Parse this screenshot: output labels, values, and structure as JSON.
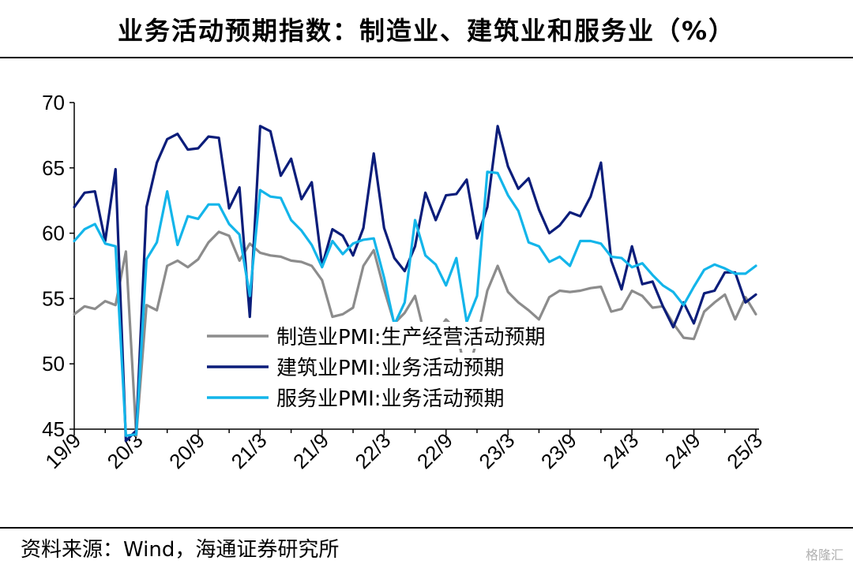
{
  "title": "业务活动预期指数：制造业、建筑业和服务业（%）",
  "source": "资料来源：Wind，海通证券研究所",
  "watermark": "格隆汇",
  "chart_data": {
    "type": "line",
    "title": "业务活动预期指数：制造业、建筑业和服务业（%）",
    "xlabel": "",
    "ylabel": "",
    "ylim": [
      45,
      70
    ],
    "yticks": [
      45,
      50,
      55,
      60,
      65,
      70
    ],
    "x_tick_labels": [
      "19/9",
      "20/3",
      "20/9",
      "21/3",
      "21/9",
      "22/3",
      "22/9",
      "23/3",
      "23/9",
      "24/3",
      "24/9",
      "25/3"
    ],
    "x": [
      "2019-09",
      "2019-10",
      "2019-11",
      "2019-12",
      "2020-01",
      "2020-02",
      "2020-03",
      "2020-04",
      "2020-05",
      "2020-06",
      "2020-07",
      "2020-08",
      "2020-09",
      "2020-10",
      "2020-11",
      "2020-12",
      "2021-01",
      "2021-02",
      "2021-03",
      "2021-04",
      "2021-05",
      "2021-06",
      "2021-07",
      "2021-08",
      "2021-09",
      "2021-10",
      "2021-11",
      "2021-12",
      "2022-01",
      "2022-02",
      "2022-03",
      "2022-04",
      "2022-05",
      "2022-06",
      "2022-07",
      "2022-08",
      "2022-09",
      "2022-10",
      "2022-11",
      "2022-12",
      "2023-01",
      "2023-02",
      "2023-03",
      "2023-04",
      "2023-05",
      "2023-06",
      "2023-07",
      "2023-08",
      "2023-09",
      "2023-10",
      "2023-11",
      "2023-12",
      "2024-01",
      "2024-02",
      "2024-03",
      "2024-04",
      "2024-05",
      "2024-06",
      "2024-07",
      "2024-08",
      "2024-09",
      "2024-10",
      "2024-11",
      "2024-12",
      "2025-01",
      "2025-02",
      "2025-03"
    ],
    "legend_position": "bottom-center",
    "grid": false,
    "series": [
      {
        "name": "制造业PMI:生产经营活动预期",
        "color": "#8c8c8c",
        "values": [
          53.8,
          54.4,
          54.2,
          54.8,
          54.5,
          58.6,
          44.5,
          54.5,
          54.1,
          57.5,
          57.9,
          57.4,
          58.0,
          59.3,
          60.1,
          59.8,
          57.9,
          59.2,
          58.5,
          58.3,
          58.2,
          57.9,
          57.8,
          57.5,
          56.4,
          53.6,
          53.8,
          54.3,
          57.5,
          58.7,
          55.7,
          53.1,
          53.9,
          55.2,
          52.0,
          52.3,
          53.4,
          52.6,
          48.9,
          51.9,
          55.6,
          57.5,
          55.5,
          54.7,
          54.1,
          53.4,
          55.1,
          55.6,
          55.5,
          55.6,
          55.8,
          55.9,
          54.0,
          54.2,
          55.6,
          55.2,
          54.3,
          54.4,
          53.1,
          52.0,
          51.9,
          54.0,
          54.7,
          55.3,
          53.4,
          55.1,
          53.8
        ]
      },
      {
        "name": "建筑业PMI:业务活动预期",
        "color": "#0b1d7a",
        "values": [
          62.0,
          63.1,
          63.2,
          59.4,
          64.9,
          44.1,
          44.9,
          62.0,
          65.4,
          67.2,
          67.6,
          66.4,
          66.5,
          67.4,
          67.3,
          61.9,
          63.5,
          53.6,
          68.2,
          67.8,
          64.4,
          65.7,
          62.6,
          63.9,
          57.5,
          60.3,
          59.8,
          58.3,
          60.4,
          66.1,
          60.4,
          58.1,
          57.1,
          59.0,
          63.1,
          61.0,
          62.9,
          63.0,
          64.1,
          59.6,
          62.0,
          68.2,
          65.1,
          63.4,
          64.2,
          61.8,
          60.0,
          60.6,
          61.6,
          61.3,
          62.8,
          65.4,
          57.9,
          55.7,
          59.0,
          56.1,
          56.3,
          54.4,
          52.8,
          54.7,
          53.1,
          55.4,
          55.6,
          57.0,
          57.0,
          54.7,
          55.3
        ]
      },
      {
        "name": "服务业PMI:业务活动预期",
        "color": "#13b5ea",
        "values": [
          59.4,
          60.3,
          60.7,
          59.2,
          59.0,
          44.5,
          44.6,
          58.0,
          59.3,
          63.2,
          59.1,
          61.3,
          61.1,
          62.2,
          62.2,
          60.7,
          59.9,
          55.2,
          63.3,
          62.8,
          62.7,
          61.0,
          60.2,
          59.1,
          57.4,
          59.4,
          58.4,
          59.2,
          59.5,
          59.6,
          56.6,
          53.0,
          54.7,
          61.0,
          58.3,
          57.6,
          56.0,
          58.1,
          53.2,
          55.2,
          64.7,
          64.6,
          62.9,
          61.7,
          59.3,
          59.0,
          57.8,
          58.2,
          57.5,
          59.4,
          59.4,
          59.2,
          58.2,
          58.1,
          57.4,
          57.7,
          56.8,
          56.0,
          55.5,
          54.5,
          55.9,
          57.2,
          57.6,
          57.3,
          56.9,
          56.9,
          57.5
        ]
      }
    ]
  }
}
